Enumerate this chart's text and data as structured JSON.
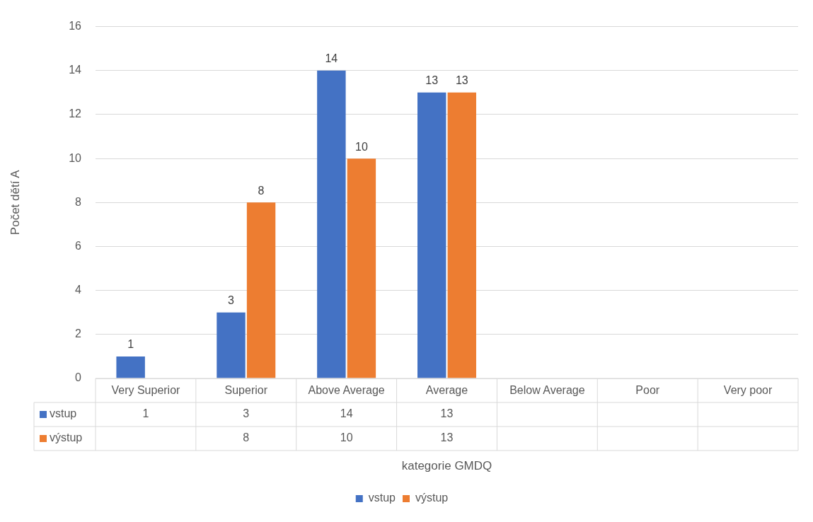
{
  "chart_data": {
    "type": "bar",
    "annotations": [
      "kategorie GMDQ"
    ],
    "ylabel": "Počet dětí A",
    "categories": [
      "Very Superior",
      "Superior",
      "Above Average",
      "Average",
      "Below Average",
      "Poor",
      "Very poor"
    ],
    "series": [
      {
        "name": "vstup",
        "color": "#4472c4",
        "values": [
          1,
          3,
          14,
          13,
          null,
          null,
          null
        ],
        "value_labels": [
          "1",
          "3",
          "14",
          "13",
          null,
          null,
          null
        ]
      },
      {
        "name": "výstup",
        "color": "#ed7d31",
        "values": [
          null,
          8,
          10,
          13,
          null,
          null,
          null
        ],
        "value_labels": [
          null,
          "8",
          "10",
          "13",
          null,
          null,
          null
        ]
      }
    ],
    "ylim": [
      0,
      16
    ],
    "yticks": [
      0,
      2,
      4,
      6,
      8,
      10,
      12,
      14,
      16
    ],
    "grid": "y",
    "legend": "bottom"
  }
}
